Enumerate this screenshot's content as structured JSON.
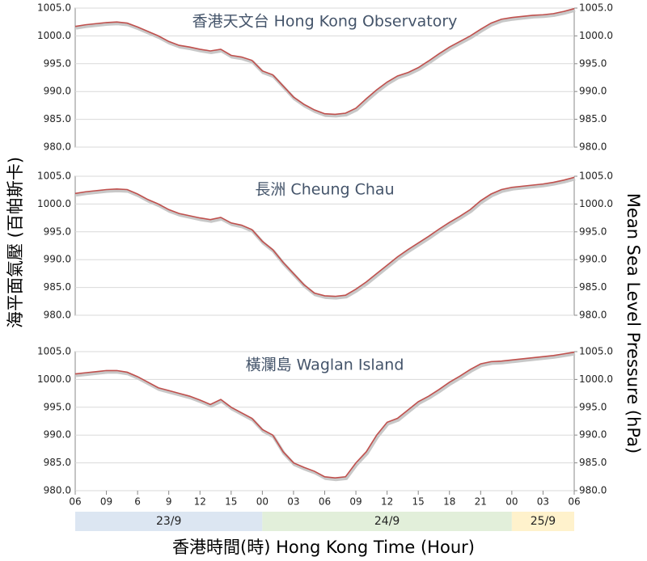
{
  "axis_labels": {
    "left": "海平面氣壓 (百帕斯卡)",
    "right": "Mean Sea Level Pressure (hPa)",
    "bottom": "香港時間(時) Hong Kong Time (Hour)"
  },
  "date_bands": [
    {
      "label": "23/9",
      "color": "#dce6f2",
      "start": 0,
      "end": 18
    },
    {
      "label": "24/9",
      "color": "#e2efda",
      "start": 18,
      "end": 42
    },
    {
      "label": "25/9",
      "color": "#fff2cc",
      "start": 42,
      "end": 48
    }
  ],
  "chart_data": [
    {
      "type": "line",
      "title": "香港天文台 Hong Kong Observatory",
      "grid": true,
      "xlim": [
        0,
        48
      ],
      "ylim": [
        980,
        1005
      ],
      "y2lim": [
        980,
        1005
      ],
      "yticks": [
        {
          "value": 980,
          "label": "980.0"
        },
        {
          "value": 985,
          "label": "985.0"
        },
        {
          "value": 990,
          "label": "990.0"
        },
        {
          "value": 995,
          "label": "995.0"
        },
        {
          "value": 1000,
          "label": "1000.0"
        },
        {
          "value": 1005,
          "label": "1005.0"
        }
      ],
      "y2ticks": [
        {
          "value": 980,
          "label": "980.0"
        },
        {
          "value": 985,
          "label": "985.0"
        },
        {
          "value": 990,
          "label": "990.0"
        },
        {
          "value": 995,
          "label": "995.0"
        },
        {
          "value": 1000,
          "label": "1000.0"
        },
        {
          "value": 1005,
          "label": "1005.0"
        }
      ],
      "x": [
        0,
        1,
        2,
        3,
        4,
        5,
        6,
        7,
        8,
        9,
        10,
        11,
        12,
        13,
        14,
        15,
        16,
        17,
        18,
        19,
        20,
        21,
        22,
        23,
        24,
        25,
        26,
        27,
        28,
        29,
        30,
        31,
        32,
        33,
        34,
        35,
        36,
        37,
        38,
        39,
        40,
        41,
        42,
        43,
        44,
        45,
        46,
        47,
        48
      ],
      "series": [
        {
          "color": "#c0504d",
          "values": [
            1001.7,
            1002.0,
            1002.2,
            1002.4,
            1002.5,
            1002.3,
            1001.6,
            1000.8,
            1000.0,
            999.0,
            998.3,
            998.0,
            997.6,
            997.3,
            997.6,
            996.5,
            996.2,
            995.6,
            993.7,
            993.0,
            991.0,
            989.0,
            987.7,
            986.7,
            986.0,
            985.9,
            986.1,
            987.0,
            988.7,
            990.3,
            991.7,
            992.8,
            993.4,
            994.3,
            995.5,
            996.8,
            998.0,
            999.0,
            1000.0,
            1001.2,
            1002.3,
            1003.0,
            1003.3,
            1003.5,
            1003.7,
            1003.8,
            1004.0,
            1004.4,
            1004.9
          ]
        }
      ]
    },
    {
      "type": "line",
      "title": "長洲 Cheung Chau",
      "grid": true,
      "xlim": [
        0,
        48
      ],
      "ylim": [
        980,
        1005
      ],
      "y2lim": [
        980,
        1005
      ],
      "yticks": [
        {
          "value": 980,
          "label": "980.0"
        },
        {
          "value": 985,
          "label": "985.0"
        },
        {
          "value": 990,
          "label": "990.0"
        },
        {
          "value": 995,
          "label": "995.0"
        },
        {
          "value": 1000,
          "label": "1000.0"
        },
        {
          "value": 1005,
          "label": "1005.0"
        }
      ],
      "y2ticks": [
        {
          "value": 980,
          "label": "980.0"
        },
        {
          "value": 985,
          "label": "985.0"
        },
        {
          "value": 990,
          "label": "990.0"
        },
        {
          "value": 995,
          "label": "995.0"
        },
        {
          "value": 1000,
          "label": "1000.0"
        },
        {
          "value": 1005,
          "label": "1005.0"
        }
      ],
      "x": [
        0,
        1,
        2,
        3,
        4,
        5,
        6,
        7,
        8,
        9,
        10,
        11,
        12,
        13,
        14,
        15,
        16,
        17,
        18,
        19,
        20,
        21,
        22,
        23,
        24,
        25,
        26,
        27,
        28,
        29,
        30,
        31,
        32,
        33,
        34,
        35,
        36,
        37,
        38,
        39,
        40,
        41,
        42,
        43,
        44,
        45,
        46,
        47,
        48
      ],
      "series": [
        {
          "color": "#c0504d",
          "values": [
            1001.9,
            1002.2,
            1002.4,
            1002.6,
            1002.7,
            1002.6,
            1001.8,
            1000.8,
            1000.0,
            999.0,
            998.3,
            997.9,
            997.5,
            997.2,
            997.6,
            996.6,
            996.2,
            995.4,
            993.3,
            991.8,
            989.5,
            987.5,
            985.5,
            984.0,
            983.5,
            983.4,
            983.6,
            984.7,
            986.0,
            987.5,
            989.0,
            990.5,
            991.8,
            993.0,
            994.2,
            995.5,
            996.7,
            997.8,
            999.0,
            1000.6,
            1001.8,
            1002.6,
            1003.0,
            1003.2,
            1003.4,
            1003.6,
            1003.9,
            1004.3,
            1004.8
          ]
        }
      ]
    },
    {
      "type": "line",
      "title": "橫瀾島 Waglan Island",
      "grid": true,
      "xlim": [
        0,
        48
      ],
      "ylim": [
        980,
        1005
      ],
      "y2lim": [
        980,
        1005
      ],
      "yticks": [
        {
          "value": 980,
          "label": "980.0"
        },
        {
          "value": 985,
          "label": "985.0"
        },
        {
          "value": 990,
          "label": "990.0"
        },
        {
          "value": 995,
          "label": "995.0"
        },
        {
          "value": 1000,
          "label": "1000.0"
        },
        {
          "value": 1005,
          "label": "1005.0"
        }
      ],
      "y2ticks": [
        {
          "value": 980,
          "label": "980.0"
        },
        {
          "value": 985,
          "label": "985.0"
        },
        {
          "value": 990,
          "label": "990.0"
        },
        {
          "value": 995,
          "label": "995.0"
        },
        {
          "value": 1000,
          "label": "1000.0"
        },
        {
          "value": 1005,
          "label": "1005.0"
        }
      ],
      "xticks": [
        {
          "value": 0,
          "label": "06"
        },
        {
          "value": 3,
          "label": "09"
        },
        6,
        9,
        12,
        15,
        {
          "value": 18,
          "label": "00"
        },
        {
          "value": 21,
          "label": "03"
        },
        {
          "value": 24,
          "label": "06"
        },
        {
          "value": 27,
          "label": "09"
        },
        {
          "value": 30,
          "label": "12"
        },
        {
          "value": 33,
          "label": "15"
        },
        {
          "value": 36,
          "label": "18"
        },
        {
          "value": 39,
          "label": "21"
        },
        {
          "value": 42,
          "label": "00"
        },
        {
          "value": 45,
          "label": "03"
        },
        {
          "value": 48,
          "label": "06"
        }
      ],
      "x": [
        0,
        1,
        2,
        3,
        4,
        5,
        6,
        7,
        8,
        9,
        10,
        11,
        12,
        13,
        14,
        15,
        16,
        17,
        18,
        19,
        20,
        21,
        22,
        23,
        24,
        25,
        26,
        27,
        28,
        29,
        30,
        31,
        32,
        33,
        34,
        35,
        36,
        37,
        38,
        39,
        40,
        41,
        42,
        43,
        44,
        45,
        46,
        47,
        48
      ],
      "series": [
        {
          "color": "#c0504d",
          "values": [
            1001.0,
            1001.2,
            1001.4,
            1001.6,
            1001.6,
            1001.3,
            1000.5,
            999.5,
            998.5,
            998.0,
            997.5,
            997.0,
            996.3,
            995.5,
            996.4,
            995.0,
            994.0,
            993.0,
            991.0,
            990.0,
            987.0,
            985.0,
            984.2,
            983.5,
            982.5,
            982.3,
            982.5,
            985.0,
            987.0,
            990.0,
            992.3,
            993.0,
            994.5,
            996.0,
            997.0,
            998.2,
            999.5,
            1000.6,
            1001.8,
            1002.8,
            1003.2,
            1003.3,
            1003.5,
            1003.7,
            1003.9,
            1004.1,
            1004.3,
            1004.6,
            1004.9
          ]
        }
      ]
    }
  ]
}
